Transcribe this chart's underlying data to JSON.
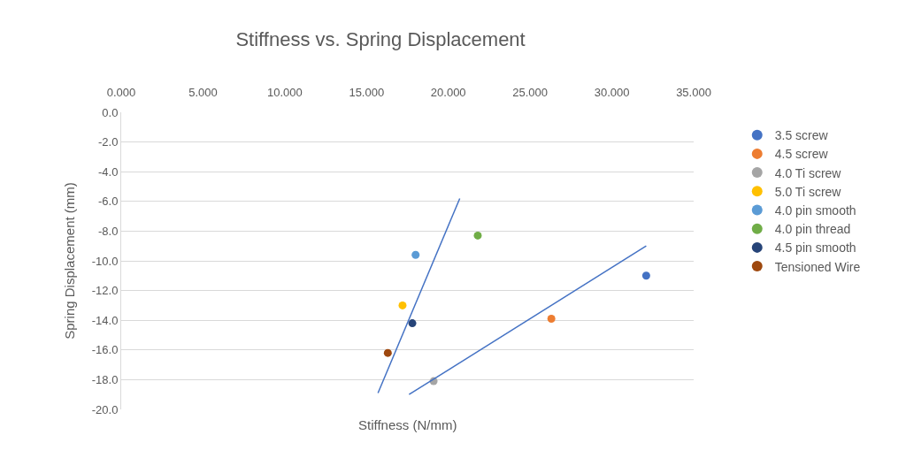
{
  "chart_data": {
    "type": "scatter",
    "title": "Stiffness vs. Spring Displacement",
    "xlabel": "Stiffness (N/mm)",
    "ylabel": "Spring Displacement (mm)",
    "xlim": [
      0,
      35
    ],
    "xticks": [
      {
        "value": 0,
        "label": "0.000"
      },
      {
        "value": 5,
        "label": "5.000"
      },
      {
        "value": 10,
        "label": "10.000"
      },
      {
        "value": 15,
        "label": "15.000"
      },
      {
        "value": 20,
        "label": "20.000"
      },
      {
        "value": 25,
        "label": "25.000"
      },
      {
        "value": 30,
        "label": "30.000"
      },
      {
        "value": 35,
        "label": "35.000"
      }
    ],
    "ylim": [
      -20,
      0
    ],
    "yticks": [
      {
        "value": 0,
        "label": "0.0"
      },
      {
        "value": -2,
        "label": "-2.0"
      },
      {
        "value": -4,
        "label": "-4.0"
      },
      {
        "value": -6,
        "label": "-6.0"
      },
      {
        "value": -8,
        "label": "-8.0"
      },
      {
        "value": -10,
        "label": "-10.0"
      },
      {
        "value": -12,
        "label": "-12.0"
      },
      {
        "value": -14,
        "label": "-14.0"
      },
      {
        "value": -16,
        "label": "-16.0"
      },
      {
        "value": -18,
        "label": "-18.0"
      },
      {
        "value": -20,
        "label": "-20.0"
      }
    ],
    "grid": "y",
    "legend": "right",
    "marker": "circle",
    "series": [
      {
        "name": "3.5 screw",
        "color": "#4472c4",
        "x": [
          32.1
        ],
        "values": [
          -11.0
        ]
      },
      {
        "name": "4.5 screw",
        "color": "#ed7d31",
        "x": [
          26.3
        ],
        "values": [
          -13.9
        ]
      },
      {
        "name": "4.0 Ti screw",
        "color": "#a5a5a5",
        "x": [
          19.1
        ],
        "values": [
          -18.1
        ]
      },
      {
        "name": "5.0 Ti screw",
        "color": "#ffc000",
        "x": [
          17.2
        ],
        "values": [
          -13.0
        ]
      },
      {
        "name": "4.0 pin smooth",
        "color": "#5b9bd5",
        "x": [
          18.0
        ],
        "values": [
          -9.6
        ]
      },
      {
        "name": "4.0 pin thread",
        "color": "#70ad47",
        "x": [
          21.8
        ],
        "values": [
          -8.3
        ]
      },
      {
        "name": "4.5 pin smooth",
        "color": "#264478",
        "x": [
          17.8
        ],
        "values": [
          -14.2
        ]
      },
      {
        "name": "Tensioned Wire",
        "color": "#9e480e",
        "x": [
          16.3
        ],
        "values": [
          -16.2
        ]
      },
      {
        "type": "line",
        "marker": "none",
        "color": "#4472c4",
        "x": [
          15.7,
          20.7
        ],
        "values": [
          -18.9,
          -5.8
        ]
      },
      {
        "type": "line",
        "marker": "none",
        "color": "#4472c4",
        "x": [
          17.6,
          32.1
        ],
        "values": [
          -19.0,
          -9.0
        ]
      }
    ]
  }
}
